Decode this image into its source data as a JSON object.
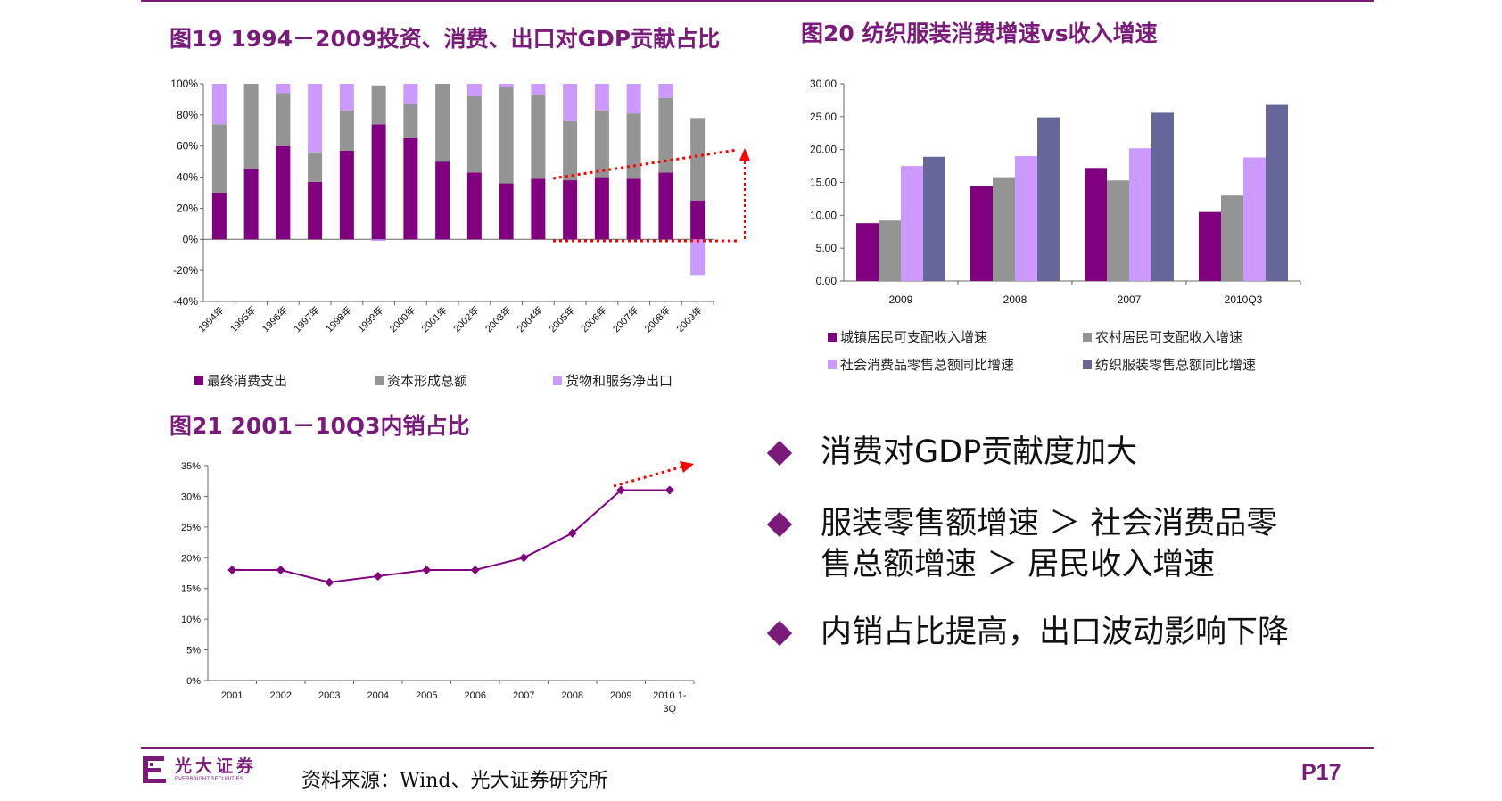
{
  "colors": {
    "accent": "#7a1a7a",
    "purple_dark": "#800080",
    "gray": "#949494",
    "lavender": "#cc99ff",
    "slate": "#666699",
    "red_dotted": "#ff0000"
  },
  "fig19": {
    "title": "图19 1994－2009投资、消费、出口对GDP贡献占比"
  },
  "fig20": {
    "title": "图20 纺织服装消费增速vs收入增速"
  },
  "fig21": {
    "title": "图21 2001－10Q3内销占比"
  },
  "chart_data": [
    {
      "id": "fig19",
      "type": "bar",
      "stacked": true,
      "categories": [
        "1994年",
        "1995年",
        "1996年",
        "1997年",
        "1998年",
        "1999年",
        "2000年",
        "2001年",
        "2002年",
        "2003年",
        "2004年",
        "2005年",
        "2006年",
        "2007年",
        "2008年",
        "2009年"
      ],
      "series": [
        {
          "name": "最终消费支出",
          "color": "#800080",
          "values": [
            30,
            45,
            60,
            37,
            57,
            74,
            65,
            50,
            43,
            36,
            39,
            38,
            40,
            39,
            43,
            25
          ]
        },
        {
          "name": "资本形成总额",
          "color": "#949494",
          "values": [
            44,
            55,
            34,
            19,
            26,
            25,
            22,
            50,
            49,
            62,
            54,
            38,
            43,
            42,
            48,
            53
          ]
        },
        {
          "name": "货物和服务净出口",
          "color": "#cc99ff",
          "values": [
            26,
            0,
            6,
            44,
            17,
            -1,
            13,
            0,
            8,
            2,
            7,
            24,
            17,
            19,
            9,
            -23
          ]
        }
      ],
      "yticks": [
        "100%",
        "80%",
        "60%",
        "40%",
        "20%",
        "0%",
        "-20%",
        "-40%"
      ],
      "ylim": [
        -40,
        100
      ],
      "legend_position": "bottom",
      "grid": false,
      "annotation": "red dotted trend lines from 2005 to 2009 with upward arrow"
    },
    {
      "id": "fig20",
      "type": "bar",
      "categories": [
        "2009",
        "2008",
        "2007",
        "2010Q3"
      ],
      "series": [
        {
          "name": "城镇居民可支配收入增速",
          "color": "#800080",
          "values": [
            8.8,
            14.5,
            17.2,
            10.5
          ]
        },
        {
          "name": "农村居民可支配收入增速",
          "color": "#949494",
          "values": [
            9.2,
            15.8,
            15.3,
            13.0
          ]
        },
        {
          "name": "社会消费品零售总额同比增速",
          "color": "#cc99ff",
          "values": [
            17.5,
            19.0,
            20.2,
            18.8
          ]
        },
        {
          "name": "纺织服装零售总额同比增速",
          "color": "#666699",
          "values": [
            18.9,
            24.9,
            25.6,
            26.8
          ]
        }
      ],
      "yticks": [
        "30.00",
        "25.00",
        "20.00",
        "15.00",
        "10.00",
        "5.00",
        "0.00"
      ],
      "ylim": [
        0,
        30
      ],
      "legend_position": "bottom",
      "grid": false
    },
    {
      "id": "fig21",
      "type": "line",
      "categories": [
        "2001",
        "2002",
        "2003",
        "2004",
        "2005",
        "2006",
        "2007",
        "2008",
        "2009",
        "2010 1-3Q"
      ],
      "x_tick_lines": [
        [
          "2001"
        ],
        [
          "2002"
        ],
        [
          "2003"
        ],
        [
          "2004"
        ],
        [
          "2005"
        ],
        [
          "2006"
        ],
        [
          "2007"
        ],
        [
          "2008"
        ],
        [
          "2009"
        ],
        [
          "2010 1-",
          "3Q"
        ]
      ],
      "values": [
        18,
        18,
        16,
        17,
        18,
        18,
        20,
        24,
        31,
        31
      ],
      "color": "#800080",
      "yticks": [
        "35%",
        "30%",
        "25%",
        "20%",
        "15%",
        "10%",
        "5%",
        "0%"
      ],
      "ylim": [
        0,
        35
      ],
      "grid": false,
      "annotation": "red dotted arrow pointing up-right after 2009"
    }
  ],
  "bullets": [
    {
      "lines": [
        "消费对GDP贡献度加大"
      ]
    },
    {
      "lines": [
        "服装零售额增速 ＞ 社会消费品零",
        "售总额增速 ＞ 居民收入增速"
      ]
    },
    {
      "lines": [
        "内销占比提高，出口波动影响下降"
      ]
    }
  ],
  "footer": {
    "source": "资料来源：Wind、光大证券研究所",
    "page": "P17",
    "logo_cn": "光大证券",
    "logo_en": "EVERBRIGHT SECURITIES"
  }
}
